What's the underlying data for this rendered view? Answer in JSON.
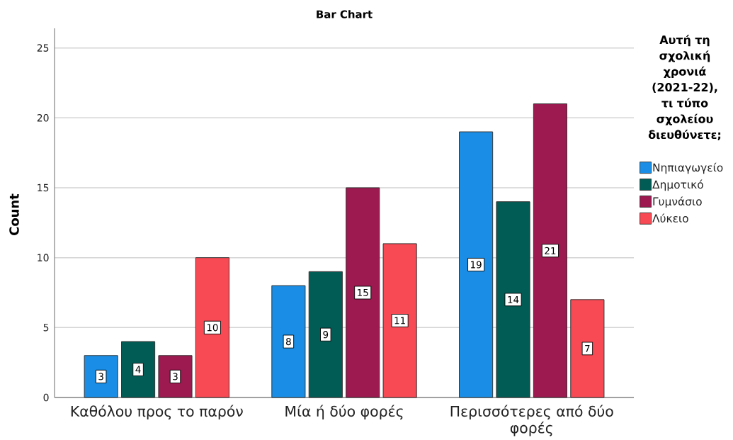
{
  "chart_data": {
    "type": "bar",
    "title": "Bar Chart",
    "ylabel": "Count",
    "legend_title": "Αυτή τη σχολική χρονιά (2021-22), τι τύπο σχολείου διευθύνετε;",
    "categories": [
      "Καθόλου προς το παρόν",
      "Μία ή δύο φορές",
      "Περισσότερες από δύο φορές"
    ],
    "series": [
      {
        "name": "Νηπιαγωγείο",
        "color": "#1a8ee6",
        "values": [
          3,
          8,
          19
        ]
      },
      {
        "name": "Δημοτικό",
        "color": "#015c55",
        "values": [
          4,
          9,
          14
        ]
      },
      {
        "name": "Γυμνάσιο",
        "color": "#9c1a4f",
        "values": [
          3,
          15,
          21
        ]
      },
      {
        "name": "Λύκειο",
        "color": "#f84a54",
        "values": [
          10,
          11,
          7
        ]
      }
    ],
    "ylim": [
      0,
      26.4
    ],
    "yticks": [
      0,
      5,
      10,
      15,
      20,
      25
    ],
    "grid": "y",
    "legend": "right",
    "data_labels": true
  }
}
